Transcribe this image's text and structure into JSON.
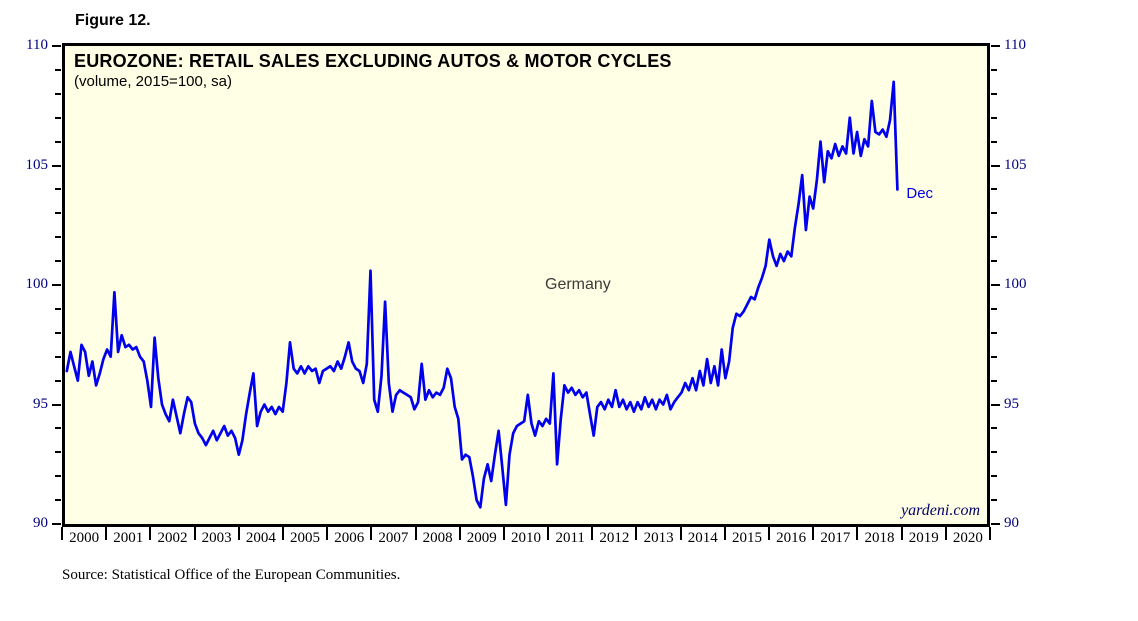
{
  "figure_label": "Figure 12.",
  "chart": {
    "title": "EUROZONE: RETAIL SALES EXCLUDING AUTOS & MOTOR CYCLES",
    "subtitle": "(volume, 2015=100, sa)",
    "series_label": "Germany",
    "last_point_label": "Dec",
    "watermark": "yardeni.com"
  },
  "source_note": "Source: Statistical Office of the European Communities.",
  "colors": {
    "background": "#FFFFFF",
    "plot_background": "#FFFFE5",
    "border": "#000000",
    "line": "#0000EE",
    "axis_number": "#000080",
    "year_label": "#000000",
    "series_label": "#3C3C3C",
    "dec_label": "#0000DD",
    "watermark": "#000066"
  },
  "chart_data": {
    "type": "line",
    "title": "EUROZONE: RETAIL SALES EXCLUDING AUTOS & MOTOR CYCLES",
    "subtitle": "(volume, 2015=100, sa)",
    "grid": false,
    "x_axis": {
      "start_year": 2000,
      "end_year": 2021,
      "tick_labels": [
        "2000",
        "2001",
        "2002",
        "2003",
        "2004",
        "2005",
        "2006",
        "2007",
        "2008",
        "2009",
        "2010",
        "2011",
        "2012",
        "2013",
        "2014",
        "2015",
        "2016",
        "2017",
        "2018",
        "2019",
        "2020"
      ]
    },
    "y_axis": {
      "min": 90,
      "max": 110,
      "major_ticks": [
        90,
        95,
        100,
        105,
        110
      ],
      "minor_step": 1,
      "sides": "both"
    },
    "annotations": [
      {
        "text": "Germany",
        "near": "2011, 100"
      },
      {
        "text": "Dec",
        "near": "2018-12, 104"
      },
      {
        "text": "yardeni.com",
        "near": "bottom-right"
      }
    ],
    "series": [
      {
        "name": "Germany",
        "frequency": "monthly",
        "start": "2000-01",
        "end": "2018-12",
        "values": [
          96.4,
          97.2,
          96.6,
          96.0,
          97.5,
          97.2,
          96.2,
          96.8,
          95.8,
          96.3,
          96.9,
          97.3,
          97.0,
          99.7,
          97.2,
          97.9,
          97.4,
          97.5,
          97.3,
          97.4,
          97.0,
          96.8,
          96.0,
          94.9,
          97.8,
          96.1,
          95.0,
          94.6,
          94.3,
          95.2,
          94.5,
          93.8,
          94.6,
          95.3,
          95.1,
          94.2,
          93.8,
          93.6,
          93.3,
          93.6,
          93.9,
          93.5,
          93.8,
          94.1,
          93.7,
          93.9,
          93.6,
          92.9,
          93.5,
          94.6,
          95.5,
          96.3,
          94.1,
          94.7,
          95.0,
          94.7,
          94.9,
          94.6,
          94.9,
          94.7,
          95.9,
          97.6,
          96.5,
          96.3,
          96.6,
          96.3,
          96.6,
          96.4,
          96.5,
          95.9,
          96.4,
          96.5,
          96.6,
          96.4,
          96.8,
          96.5,
          97.0,
          97.6,
          96.8,
          96.5,
          96.4,
          95.9,
          96.7,
          100.6,
          95.2,
          94.7,
          96.2,
          99.3,
          95.9,
          94.7,
          95.4,
          95.6,
          95.5,
          95.4,
          95.3,
          94.8,
          95.1,
          96.7,
          95.2,
          95.6,
          95.3,
          95.5,
          95.4,
          95.7,
          96.5,
          96.1,
          94.9,
          94.4,
          92.7,
          92.9,
          92.8,
          92.0,
          91.0,
          90.7,
          91.9,
          92.5,
          91.8,
          92.9,
          93.9,
          92.4,
          90.8,
          92.9,
          93.8,
          94.1,
          94.2,
          94.3,
          95.4,
          94.2,
          93.7,
          94.3,
          94.1,
          94.4,
          94.2,
          96.3,
          92.5,
          94.4,
          95.8,
          95.5,
          95.7,
          95.4,
          95.6,
          95.3,
          95.5,
          94.6,
          93.7,
          94.9,
          95.1,
          94.8,
          95.2,
          94.9,
          95.6,
          94.9,
          95.2,
          94.8,
          95.1,
          94.7,
          95.1,
          94.8,
          95.3,
          94.9,
          95.2,
          94.8,
          95.2,
          95.0,
          95.4,
          94.8,
          95.1,
          95.3,
          95.5,
          95.9,
          95.6,
          96.1,
          95.6,
          96.4,
          95.8,
          96.9,
          95.9,
          96.6,
          95.8,
          97.3,
          96.1,
          96.8,
          98.2,
          98.8,
          98.7,
          98.9,
          99.2,
          99.5,
          99.4,
          99.9,
          100.3,
          100.8,
          101.9,
          101.2,
          100.8,
          101.3,
          101.0,
          101.4,
          101.2,
          102.4,
          103.4,
          104.6,
          102.3,
          103.7,
          103.2,
          104.4,
          106.0,
          104.3,
          105.6,
          105.3,
          105.9,
          105.4,
          105.8,
          105.5,
          107.0,
          105.5,
          106.4,
          105.4,
          106.1,
          105.8,
          107.7,
          106.4,
          106.3,
          106.5,
          106.2,
          106.9,
          108.5,
          104.0
        ]
      }
    ]
  }
}
